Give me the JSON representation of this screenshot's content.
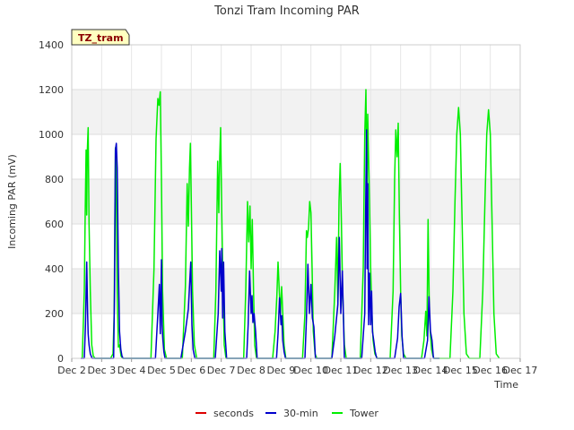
{
  "chart_data": {
    "type": "line",
    "title": "Tonzi Tram Incoming PAR",
    "xlabel": "Time",
    "ylabel": "Incoming PAR (mV)",
    "site_tag": "TZ_tram",
    "ylim": [
      0,
      1400
    ],
    "xlim": [
      2,
      17
    ],
    "y_ticks": [
      0,
      200,
      400,
      600,
      800,
      1000,
      1200,
      1400
    ],
    "x_ticks": [
      {
        "value": 2,
        "label": "Dec 2"
      },
      {
        "value": 3,
        "label": "Dec 3"
      },
      {
        "value": 4,
        "label": "Dec 4"
      },
      {
        "value": 5,
        "label": "Dec 5"
      },
      {
        "value": 6,
        "label": "Dec 6"
      },
      {
        "value": 7,
        "label": "Dec 7"
      },
      {
        "value": 8,
        "label": "Dec 8"
      },
      {
        "value": 9,
        "label": "Dec 9"
      },
      {
        "value": 10,
        "label": "Dec 10"
      },
      {
        "value": 11,
        "label": "Dec 11"
      },
      {
        "value": 12,
        "label": "Dec 12"
      },
      {
        "value": 13,
        "label": "Dec 13"
      },
      {
        "value": 14,
        "label": "Dec 14"
      },
      {
        "value": 15,
        "label": "Dec 15"
      },
      {
        "value": 16,
        "label": "Dec 16"
      },
      {
        "value": 17,
        "label": "Dec 17"
      }
    ],
    "grid": true,
    "legend_position": "bottom-center",
    "series": [
      {
        "name": "seconds",
        "color": "#dd0000",
        "x": [],
        "y": []
      },
      {
        "name": "30-min",
        "color": "#0000cc",
        "x": [
          2.3,
          2.42,
          2.46,
          2.5,
          2.53,
          2.55,
          2.58,
          2.62,
          2.68,
          2.72,
          2.76,
          2.8,
          2.85,
          3.3,
          3.4,
          3.43,
          3.46,
          3.49,
          3.52,
          3.56,
          3.6,
          3.64,
          3.68,
          3.72,
          3.8,
          4.3,
          4.8,
          4.88,
          4.93,
          4.96,
          5.0,
          5.02,
          5.05,
          5.08,
          5.12,
          5.18,
          5.3,
          5.3,
          5.65,
          5.8,
          5.9,
          5.98,
          6.02,
          6.06,
          6.12,
          6.3,
          6.3,
          6.8,
          6.9,
          6.95,
          7.0,
          7.02,
          7.05,
          7.08,
          7.12,
          7.18,
          7.3,
          7.3,
          7.85,
          7.9,
          7.95,
          8.0,
          8.03,
          8.06,
          8.1,
          8.15,
          8.2,
          8.3,
          8.3,
          8.85,
          8.9,
          8.95,
          9.0,
          9.03,
          9.06,
          9.1,
          9.15,
          9.3,
          9.3,
          9.8,
          9.85,
          9.9,
          9.95,
          10.0,
          10.05,
          10.1,
          10.15,
          10.3,
          10.3,
          10.7,
          10.8,
          10.9,
          10.95,
          11.0,
          11.05,
          11.12,
          11.3,
          11.3,
          11.7,
          11.8,
          11.83,
          11.86,
          11.88,
          11.9,
          11.93,
          11.96,
          12.0,
          12.03,
          12.06,
          12.1,
          12.15,
          12.2,
          12.3,
          12.3,
          12.8,
          12.9,
          12.95,
          13.0,
          13.05,
          13.1,
          13.3,
          13.3,
          13.8,
          13.85,
          13.9,
          13.95,
          14.0,
          14.05,
          14.1,
          14.15,
          14.3
        ],
        "y": [
          0,
          0,
          150,
          430,
          200,
          110,
          60,
          20,
          0,
          0,
          0,
          0,
          0,
          0,
          0,
          300,
          930,
          960,
          850,
          400,
          120,
          40,
          10,
          0,
          0,
          0,
          0,
          200,
          330,
          110,
          440,
          150,
          80,
          30,
          0,
          0,
          0,
          0,
          0,
          120,
          220,
          430,
          150,
          40,
          0,
          0,
          0,
          0,
          200,
          480,
          300,
          490,
          180,
          430,
          120,
          0,
          0,
          0,
          0,
          150,
          390,
          200,
          280,
          160,
          200,
          120,
          0,
          0,
          0,
          0,
          110,
          270,
          150,
          190,
          80,
          30,
          0,
          0,
          0,
          0,
          180,
          420,
          200,
          330,
          180,
          140,
          0,
          0,
          0,
          0,
          100,
          240,
          540,
          200,
          390,
          0,
          0,
          0,
          0,
          200,
          660,
          1020,
          400,
          780,
          150,
          380,
          150,
          300,
          120,
          80,
          30,
          0,
          0,
          0,
          0,
          90,
          230,
          290,
          100,
          0,
          0,
          0,
          0,
          40,
          80,
          275,
          120,
          80,
          0,
          0,
          0
        ]
      },
      {
        "name": "Tower",
        "color": "#00ee00",
        "x": [
          2.35,
          2.42,
          2.45,
          2.48,
          2.5,
          2.52,
          2.55,
          2.58,
          2.62,
          2.67,
          2.72,
          2.78,
          2.85,
          3.3,
          3.38,
          3.42,
          3.44,
          3.46,
          3.48,
          3.52,
          3.56,
          3.6,
          3.65,
          3.7,
          3.8,
          4.3,
          4.65,
          4.75,
          4.82,
          4.88,
          4.92,
          4.96,
          5.0,
          5.04,
          5.1,
          5.17,
          5.25,
          5.35,
          5.35,
          5.7,
          5.8,
          5.86,
          5.9,
          5.94,
          5.97,
          6.0,
          6.04,
          6.1,
          6.18,
          6.3,
          6.3,
          6.75,
          6.82,
          6.88,
          6.92,
          6.95,
          6.98,
          7.02,
          7.06,
          7.1,
          7.16,
          7.25,
          7.3,
          7.3,
          7.75,
          7.82,
          7.88,
          7.92,
          7.96,
          8.0,
          8.04,
          8.08,
          8.12,
          8.18,
          8.25,
          8.3,
          8.3,
          8.72,
          8.8,
          8.86,
          8.9,
          8.94,
          8.98,
          9.02,
          9.06,
          9.1,
          9.16,
          9.3,
          9.3,
          9.72,
          9.8,
          9.85,
          9.88,
          9.92,
          9.96,
          10.0,
          10.04,
          10.08,
          10.14,
          10.2,
          10.3,
          10.3,
          10.7,
          10.8,
          10.86,
          10.9,
          10.94,
          10.98,
          11.02,
          11.06,
          11.12,
          11.18,
          11.3,
          11.3,
          11.65,
          11.75,
          11.8,
          11.84,
          11.88,
          11.9,
          11.93,
          11.96,
          12.0,
          12.04,
          12.08,
          12.14,
          12.22,
          12.3,
          12.3,
          12.65,
          12.75,
          12.8,
          12.84,
          12.88,
          12.92,
          12.96,
          13.0,
          13.04,
          13.1,
          13.18,
          13.3,
          13.3,
          13.7,
          13.78,
          13.84,
          13.88,
          13.92,
          13.96,
          14.0,
          14.04,
          14.08,
          14.12,
          14.18,
          14.3,
          14.3,
          14.65,
          14.75,
          14.82,
          14.88,
          14.94,
          15.0,
          15.06,
          15.12,
          15.2,
          15.3,
          15.3,
          15.65,
          15.75,
          15.82,
          15.88,
          15.94,
          16.0,
          16.06,
          16.12,
          16.2,
          16.3
        ],
        "y": [
          0,
          300,
          650,
          930,
          640,
          920,
          1030,
          600,
          300,
          60,
          10,
          0,
          0,
          0,
          20,
          200,
          600,
          940,
          910,
          300,
          50,
          60,
          10,
          0,
          0,
          0,
          0,
          400,
          980,
          1160,
          1130,
          1190,
          800,
          300,
          40,
          0,
          0,
          0,
          0,
          0,
          320,
          780,
          590,
          850,
          960,
          700,
          300,
          60,
          0,
          0,
          0,
          0,
          300,
          880,
          650,
          900,
          1030,
          640,
          300,
          60,
          0,
          0,
          0,
          0,
          0,
          300,
          700,
          520,
          680,
          400,
          620,
          300,
          60,
          0,
          0,
          0,
          0,
          0,
          120,
          280,
          430,
          310,
          200,
          320,
          200,
          60,
          0,
          0,
          0,
          0,
          200,
          570,
          540,
          580,
          700,
          650,
          400,
          120,
          20,
          0,
          0,
          0,
          0,
          300,
          540,
          250,
          700,
          870,
          600,
          300,
          60,
          0,
          0,
          0,
          0,
          400,
          1000,
          1200,
          700,
          1090,
          900,
          700,
          400,
          200,
          80,
          20,
          0,
          0,
          0,
          0,
          300,
          800,
          1020,
          900,
          1050,
          640,
          300,
          100,
          20,
          0,
          0,
          0,
          0,
          80,
          210,
          100,
          620,
          200,
          100,
          40,
          10,
          0,
          0,
          0,
          0,
          0,
          300,
          700,
          1000,
          1120,
          1000,
          600,
          200,
          20,
          0,
          0,
          0,
          300,
          700,
          1000,
          1110,
          1000,
          600,
          200,
          20,
          0
        ]
      }
    ]
  }
}
